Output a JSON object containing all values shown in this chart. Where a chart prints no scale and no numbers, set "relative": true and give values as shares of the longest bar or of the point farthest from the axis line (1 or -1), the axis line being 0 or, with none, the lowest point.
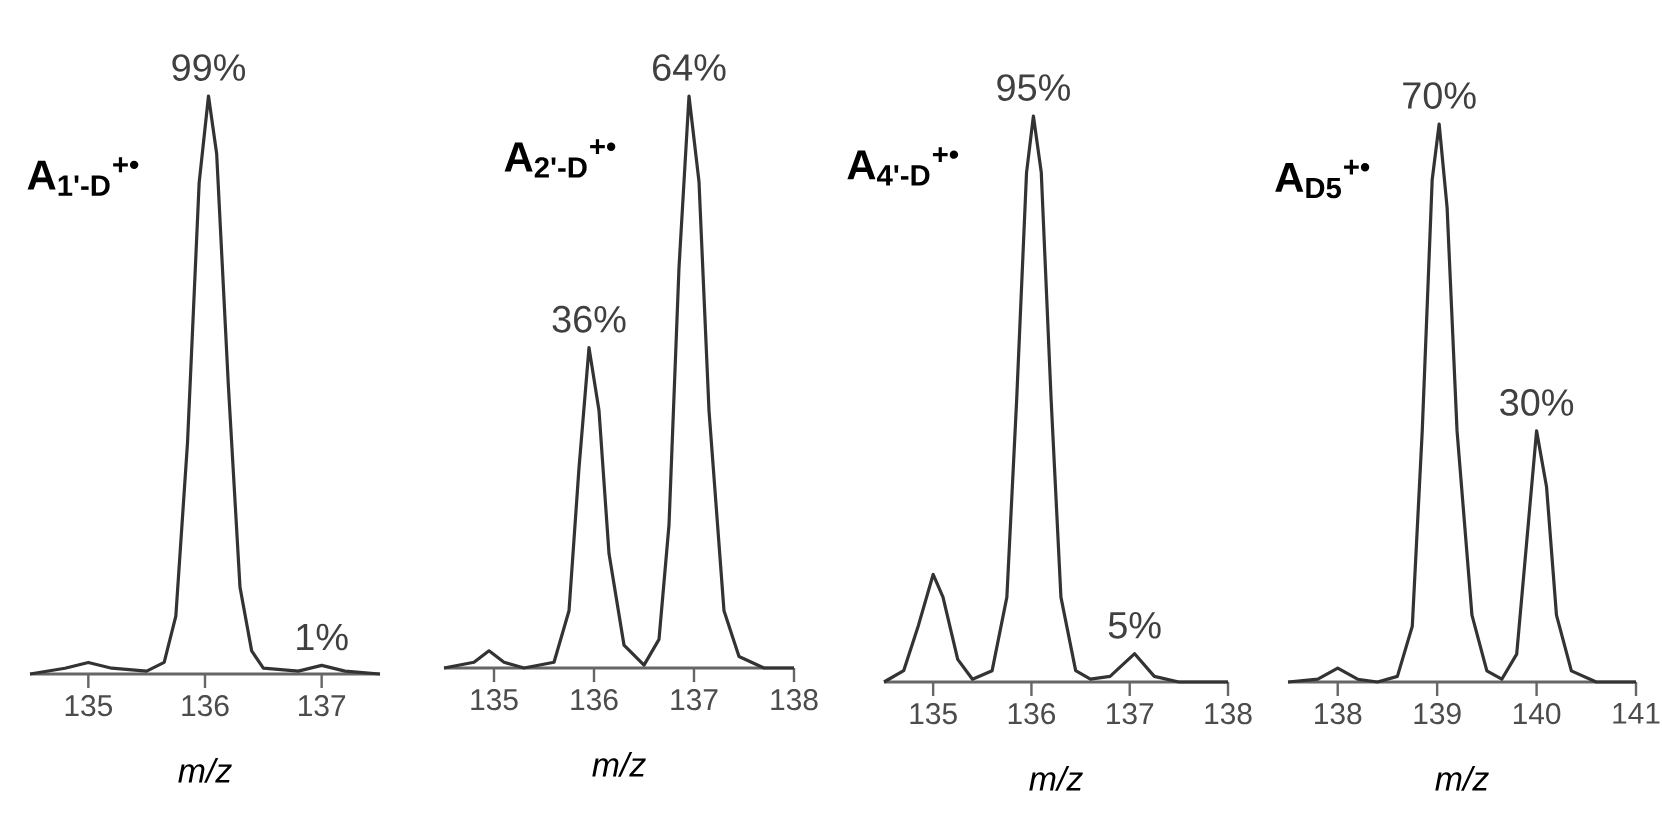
{
  "chart_data": [
    {
      "type": "line",
      "relative": true,
      "title": "A$_{1'-D}$$^{+•}$",
      "xlabel": "m/z",
      "xlim": [
        134.5,
        137.5
      ],
      "xticks": [
        135,
        136,
        137
      ],
      "color": "#333333",
      "x": [
        134.5,
        134.8,
        135,
        135.2,
        135.5,
        135.65,
        135.75,
        135.85,
        135.95,
        136.03,
        136.1,
        136.2,
        136.3,
        136.4,
        136.5,
        136.8,
        137,
        137.2,
        137.5
      ],
      "values": [
        0,
        0.01,
        0.02,
        0.01,
        0.005,
        0.02,
        0.1,
        0.4,
        0.85,
        1,
        0.9,
        0.5,
        0.15,
        0.04,
        0.01,
        0.005,
        0.015,
        0.005,
        0
      ],
      "annotations": [
        {
          "text": "99%",
          "x": 136.03,
          "y": 1
        },
        {
          "text": "1%",
          "x": 137,
          "y": 0.015
        }
      ]
    },
    {
      "type": "line",
      "relative": true,
      "title": "A$_{2'-D}$$^{+•}$",
      "xlabel": "m/z",
      "xlim": [
        134.5,
        138
      ],
      "xticks": [
        135,
        136,
        137,
        138
      ],
      "color": "#333333",
      "x": [
        134.5,
        134.8,
        134.95,
        135.1,
        135.3,
        135.6,
        135.75,
        135.85,
        135.95,
        136.05,
        136.15,
        136.3,
        136.5,
        136.65,
        136.75,
        136.85,
        136.95,
        137.05,
        137.15,
        137.3,
        137.45,
        137.7,
        138
      ],
      "values": [
        0,
        0.01,
        0.03,
        0.01,
        0,
        0.01,
        0.1,
        0.35,
        0.56,
        0.45,
        0.2,
        0.04,
        0.005,
        0.05,
        0.25,
        0.7,
        1,
        0.85,
        0.45,
        0.1,
        0.02,
        0,
        0
      ],
      "annotations": [
        {
          "text": "36%",
          "x": 135.95,
          "y": 0.56
        },
        {
          "text": "64%",
          "x": 136.95,
          "y": 1
        }
      ]
    },
    {
      "type": "line",
      "relative": true,
      "title": "A$_{4'-D}$$^{+•}$",
      "xlabel": "m/z",
      "xlim": [
        134.5,
        138
      ],
      "xticks": [
        135,
        136,
        137,
        138
      ],
      "color": "#333333",
      "x": [
        134.5,
        134.7,
        134.85,
        135,
        135.1,
        135.25,
        135.4,
        135.6,
        135.75,
        135.85,
        135.95,
        136.02,
        136.1,
        136.2,
        136.3,
        136.45,
        136.6,
        136.8,
        137.05,
        137.25,
        137.5,
        138
      ],
      "values": [
        0,
        0.02,
        0.1,
        0.19,
        0.15,
        0.04,
        0.005,
        0.02,
        0.15,
        0.5,
        0.9,
        1,
        0.9,
        0.5,
        0.15,
        0.02,
        0.005,
        0.01,
        0.05,
        0.01,
        0,
        0
      ],
      "annotations": [
        {
          "text": "95%",
          "x": 136.02,
          "y": 1
        },
        {
          "text": "5%",
          "x": 137.05,
          "y": 0.05
        }
      ]
    },
    {
      "type": "line",
      "relative": true,
      "title": "A$_{D5}$$^{+•}$",
      "xlabel": "m/z",
      "xlim": [
        137.5,
        141
      ],
      "xticks": [
        138,
        139,
        140,
        141
      ],
      "color": "#333333",
      "x": [
        137.5,
        137.8,
        138,
        138.2,
        138.4,
        138.6,
        138.75,
        138.85,
        138.95,
        139.02,
        139.1,
        139.2,
        139.35,
        139.5,
        139.65,
        139.8,
        139.9,
        140,
        140.1,
        140.2,
        140.35,
        140.6,
        141
      ],
      "values": [
        0,
        0.005,
        0.025,
        0.005,
        0,
        0.01,
        0.1,
        0.45,
        0.9,
        1,
        0.85,
        0.45,
        0.12,
        0.02,
        0.005,
        0.05,
        0.25,
        0.45,
        0.35,
        0.12,
        0.02,
        0,
        0
      ],
      "annotations": [
        {
          "text": "70%",
          "x": 139.02,
          "y": 1
        },
        {
          "text": "30%",
          "x": 140,
          "y": 0.45
        }
      ]
    }
  ]
}
